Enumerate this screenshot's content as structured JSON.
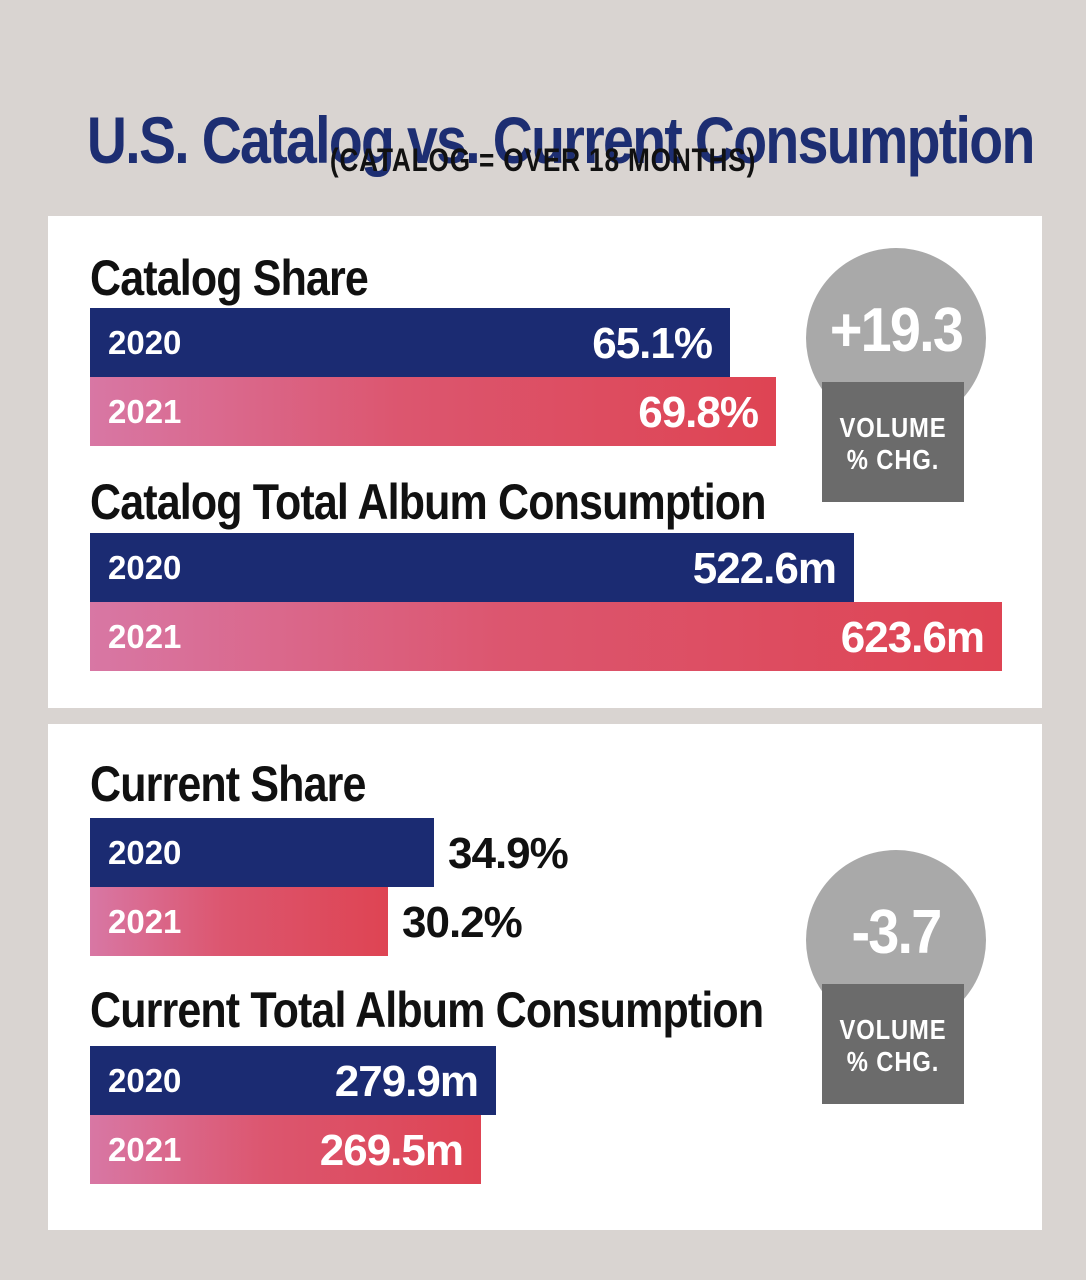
{
  "title": "U.S. Catalog vs. Current Consumption",
  "subtitle": "(CATALOG = OVER 18 MONTHS)",
  "colors": {
    "background": "#d9d4d1",
    "title": "#1d2e72",
    "bar_2020": "#1b2b72",
    "bar_2021": "#de4453",
    "badge_circle": "#a9a9a9",
    "badge_box": "#6b6b6b"
  },
  "badges": {
    "catalog": {
      "value": "+19.3",
      "label_line1": "VOLUME",
      "label_line2": "% CHG."
    },
    "current": {
      "value": "-3.7",
      "label_line1": "VOLUME",
      "label_line2": "% CHG."
    }
  },
  "chart_data": [
    {
      "type": "bar",
      "title": "Catalog Share",
      "categories": [
        "2020",
        "2021"
      ],
      "values": [
        65.1,
        69.8
      ],
      "value_labels": [
        "65.1%",
        "69.8%"
      ],
      "unit": "%"
    },
    {
      "type": "bar",
      "title": "Catalog Total Album Consumption",
      "categories": [
        "2020",
        "2021"
      ],
      "values": [
        522.6,
        623.6
      ],
      "value_labels": [
        "522.6m",
        "623.6m"
      ],
      "unit": "m"
    },
    {
      "type": "bar",
      "title": "Current Share",
      "categories": [
        "2020",
        "2021"
      ],
      "values": [
        34.9,
        30.2
      ],
      "value_labels": [
        "34.9%",
        "30.2%"
      ],
      "unit": "%"
    },
    {
      "type": "bar",
      "title": "Current Total Album Consumption",
      "categories": [
        "2020",
        "2021"
      ],
      "values": [
        279.9,
        269.5
      ],
      "value_labels": [
        "279.9m",
        "269.5m"
      ],
      "unit": "m"
    }
  ]
}
